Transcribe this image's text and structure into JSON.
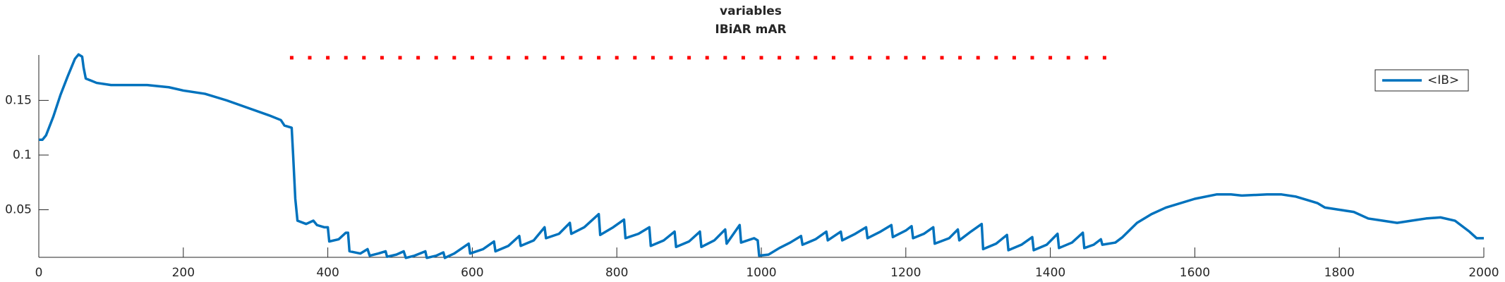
{
  "chart_data": {
    "type": "line",
    "title": "variables",
    "subtitle": "IBiAR mAR",
    "xlim": [
      0,
      2000
    ],
    "xticks": [
      0,
      200,
      400,
      600,
      800,
      1000,
      1200,
      1400,
      1600,
      1800,
      2000
    ],
    "ylim": [
      0.0065,
      0.1915
    ],
    "yticks": [
      0.05,
      0.1,
      0.15
    ],
    "grid": false,
    "legend": "upper right",
    "series": [
      {
        "name": "<IB>",
        "type": "line",
        "color": "#0072bd",
        "x": [
          0,
          5,
          10,
          20,
          30,
          40,
          50,
          55,
          60,
          62,
          65,
          80,
          100,
          150,
          180,
          200,
          230,
          260,
          290,
          320,
          335,
          340,
          350,
          352,
          355,
          358,
          370,
          380,
          385,
          395,
          400,
          402,
          415,
          425,
          428,
          430,
          445,
          455,
          458,
          470,
          480,
          482,
          495,
          505,
          508,
          520,
          535,
          537,
          550,
          560,
          562,
          575,
          595,
          597,
          615,
          630,
          632,
          650,
          665,
          667,
          685,
          700,
          702,
          720,
          735,
          737,
          755,
          775,
          777,
          795,
          810,
          812,
          830,
          845,
          847,
          865,
          880,
          882,
          900,
          915,
          917,
          935,
          950,
          952,
          970,
          972,
          990,
          995,
          997,
          1010,
          1025,
          1040,
          1055,
          1057,
          1075,
          1090,
          1092,
          1110,
          1112,
          1130,
          1145,
          1147,
          1165,
          1180,
          1182,
          1200,
          1208,
          1210,
          1225,
          1238,
          1240,
          1260,
          1272,
          1274,
          1290,
          1305,
          1307,
          1325,
          1340,
          1342,
          1360,
          1375,
          1377,
          1395,
          1410,
          1412,
          1430,
          1445,
          1447,
          1460,
          1470,
          1472,
          1490,
          1500,
          1520,
          1540,
          1560,
          1600,
          1630,
          1650,
          1665,
          1700,
          1720,
          1740,
          1760,
          1770,
          1780,
          1800,
          1820,
          1840,
          1860,
          1880,
          1900,
          1920,
          1940,
          1960,
          1980,
          1990,
          2000
        ],
        "values": [
          0.114,
          0.114,
          0.118,
          0.135,
          0.155,
          0.172,
          0.188,
          0.192,
          0.19,
          0.18,
          0.17,
          0.166,
          0.164,
          0.164,
          0.162,
          0.159,
          0.156,
          0.15,
          0.143,
          0.136,
          0.132,
          0.127,
          0.125,
          0.1,
          0.06,
          0.04,
          0.037,
          0.04,
          0.036,
          0.034,
          0.034,
          0.021,
          0.023,
          0.029,
          0.029,
          0.012,
          0.01,
          0.014,
          0.008,
          0.01,
          0.012,
          0.007,
          0.009,
          0.012,
          0.006,
          0.008,
          0.012,
          0.006,
          0.008,
          0.011,
          0.006,
          0.01,
          0.019,
          0.01,
          0.014,
          0.021,
          0.012,
          0.017,
          0.026,
          0.017,
          0.022,
          0.034,
          0.024,
          0.028,
          0.038,
          0.028,
          0.034,
          0.046,
          0.027,
          0.034,
          0.041,
          0.024,
          0.028,
          0.034,
          0.017,
          0.022,
          0.03,
          0.016,
          0.021,
          0.03,
          0.016,
          0.022,
          0.032,
          0.019,
          0.036,
          0.02,
          0.024,
          0.022,
          0.008,
          0.009,
          0.015,
          0.02,
          0.026,
          0.018,
          0.023,
          0.03,
          0.022,
          0.03,
          0.022,
          0.028,
          0.034,
          0.024,
          0.03,
          0.036,
          0.025,
          0.031,
          0.035,
          0.024,
          0.028,
          0.034,
          0.019,
          0.024,
          0.032,
          0.022,
          0.03,
          0.037,
          0.014,
          0.019,
          0.027,
          0.013,
          0.018,
          0.025,
          0.013,
          0.018,
          0.028,
          0.015,
          0.02,
          0.029,
          0.015,
          0.018,
          0.023,
          0.018,
          0.02,
          0.025,
          0.038,
          0.046,
          0.052,
          0.06,
          0.064,
          0.064,
          0.063,
          0.064,
          0.064,
          0.062,
          0.058,
          0.056,
          0.052,
          0.05,
          0.048,
          0.042,
          0.04,
          0.038,
          0.04,
          0.042,
          0.043,
          0.04,
          0.03,
          0.024,
          0.024
        ]
      },
      {
        "type": "scatter",
        "color": "#ff0000",
        "x": [
          350,
          375,
          400,
          425,
          450,
          475,
          500,
          525,
          550,
          575,
          600,
          625,
          650,
          675,
          700,
          725,
          750,
          775,
          800,
          825,
          850,
          875,
          900,
          925,
          950,
          975,
          1000,
          1025,
          1050,
          1075,
          1100,
          1125,
          1150,
          1175,
          1200,
          1225,
          1250,
          1275,
          1300,
          1325,
          1350,
          1375,
          1400,
          1425,
          1450,
          1475
        ],
        "values": [
          0.189,
          0.189,
          0.189,
          0.189,
          0.189,
          0.189,
          0.189,
          0.189,
          0.189,
          0.189,
          0.189,
          0.189,
          0.189,
          0.189,
          0.189,
          0.189,
          0.189,
          0.189,
          0.189,
          0.189,
          0.189,
          0.189,
          0.189,
          0.189,
          0.189,
          0.189,
          0.189,
          0.189,
          0.189,
          0.189,
          0.189,
          0.189,
          0.189,
          0.189,
          0.189,
          0.189,
          0.189,
          0.189,
          0.189,
          0.189,
          0.189,
          0.189,
          0.189,
          0.189,
          0.189,
          0.189
        ]
      }
    ]
  }
}
